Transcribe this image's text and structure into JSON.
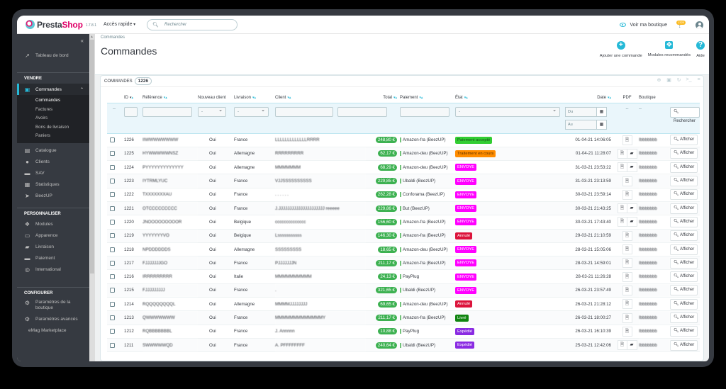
{
  "header": {
    "logo_part1": "Presta",
    "logo_part2": "Shop",
    "version": "1.7.8.1",
    "quick_access": "Accès rapide",
    "search_placeholder": "Rechercher",
    "view_shop": "Voir ma boutique",
    "notif_count": "1325"
  },
  "sidebar": {
    "collapse": "«",
    "dashboard": "Tableau de bord",
    "sections": {
      "sell": "VENDRE",
      "customize": "PERSONNALISER",
      "configure": "CONFIGURER"
    },
    "orders": "Commandes",
    "orders_sub": [
      "Commandes",
      "Factures",
      "Avoirs",
      "Bons de livraison",
      "Paniers"
    ],
    "sell_items": [
      "Catalogue",
      "Clients",
      "SAV",
      "Statistiques",
      "BeezUP"
    ],
    "customize_items": [
      "Modules",
      "Apparence",
      "Livraison",
      "Paiement",
      "International"
    ],
    "configure_items": [
      "Paramètres de la boutique",
      "Paramètres avancés",
      "eMag Marketplace"
    ]
  },
  "page": {
    "breadcrumb": "Commandes",
    "title": "Commandes",
    "toolbar": {
      "add_order": "Ajouter une commande",
      "recommended_modules": "Modules recommandés",
      "help": "Aide"
    }
  },
  "panel": {
    "title": "COMMANDES",
    "count": "1226"
  },
  "table": {
    "columns": {
      "id": "ID",
      "reference": "Référence",
      "new_client": "Nouveau client",
      "delivery": "Livraison",
      "client": "Client",
      "total": "Total",
      "payment": "Paiement",
      "state": "État",
      "date": "Date",
      "pdf": "PDF",
      "shop": "Boutique"
    },
    "filters": {
      "select_default": "-",
      "date_from": "Du",
      "date_to": "Au",
      "dash": "--",
      "search_button": "Rechercher"
    },
    "action_label": "Afficher",
    "rows": [
      {
        "id": "1226",
        "ref": "IIWWWWWWWW",
        "new": "Oui",
        "country": "France",
        "client": "LLLLLLLLLLLLLRRRR",
        "total": "248,80 €",
        "payment": "Amazon-fra (BeezUP)",
        "state": "Paiement accepté",
        "state_color": "#32cd32",
        "state_text": "#1a4f1a",
        "date": "01-04-21 14:06:05",
        "delivery_slip": false,
        "shop": "Ibbbbbbb"
      },
      {
        "id": "1225",
        "ref": "HYWWWWWNSZ",
        "new": "Oui",
        "country": "Allemagne",
        "client": "RRRRRRRRR",
        "total": "62,17 €",
        "payment": "Amazon-deu (BeezUP)",
        "state": "Traitement en cours",
        "state_color": "#ff8c00",
        "state_text": "#5a2f00",
        "date": "01-04-21 11:28:07",
        "delivery_slip": true,
        "shop": "Ibbbbbbb"
      },
      {
        "id": "1224",
        "ref": "PYYYYYYYYYYYYY",
        "new": "Oui",
        "country": "Allemagne",
        "client": "MMMMMMM",
        "total": "68,29 €",
        "payment": "Amazon-deu (BeezUP)",
        "state": "ENVOYE",
        "state_color": "#ff00ff",
        "state_text": "#ffffff",
        "date": "31-03-21 23:53:22",
        "delivery_slip": true,
        "shop": "Ibbbbbbb"
      },
      {
        "id": "1223",
        "ref": "IYTRMLYUC",
        "new": "Oui",
        "country": "France",
        "client": "VJJSSSSSSSSSS",
        "total": "229,85 €",
        "payment": "Ubaldi (BeezUP)",
        "state": "ENVOYE",
        "state_color": "#ff00ff",
        "state_text": "#ffffff",
        "date": "31-03-21 23:13:59",
        "delivery_slip": false,
        "shop": "Ibbbbbbb"
      },
      {
        "id": "1222",
        "ref": "TXXXXXXXAU",
        "new": "Oui",
        "country": "France",
        "client": ". . . . . .",
        "total": "262,28 €",
        "payment": "Conforama (BeezUP)",
        "state": "ENVOYE",
        "state_color": "#ff00ff",
        "state_text": "#ffffff",
        "date": "30-03-21 23:59:14",
        "delivery_slip": false,
        "shop": "Ibbbbbbb"
      },
      {
        "id": "1221",
        "ref": "OTCCCCCCCCC",
        "new": "Oui",
        "country": "France",
        "client": "J.JJJJJJJJJJJJJJJJJJJJJ reeeee",
        "total": "229,86 €",
        "payment": "But (BeezUP)",
        "state": "ENVOYE",
        "state_color": "#ff00ff",
        "state_text": "#ffffff",
        "date": "30-03-21 21:43:25",
        "delivery_slip": true,
        "shop": "Ibbbbbbb"
      },
      {
        "id": "1220",
        "ref": "JNOOOOOOOOOR",
        "new": "Oui",
        "country": "Belgique",
        "client": "cccccccccccccc",
        "total": "156,60 €",
        "payment": "Amazon-fra (BeezUP)",
        "state": "ENVOYE",
        "state_color": "#ff00ff",
        "state_text": "#ffffff",
        "date": "30-03-21 17:43:40",
        "delivery_slip": true,
        "shop": "Ibbbbbbb"
      },
      {
        "id": "1219",
        "ref": "YYYYYYYVO",
        "new": "Oui",
        "country": "Belgique",
        "client": "Lsssssssssss",
        "total": "146,30 €",
        "payment": "Amazon-fra (BeezUP)",
        "state": "Annulé",
        "state_color": "#dc143c",
        "state_text": "#ffffff",
        "date": "29-03-21 21:10:59",
        "delivery_slip": false,
        "shop": "Ibbbbbbb"
      },
      {
        "id": "1218",
        "ref": "NPDDDDDDS",
        "new": "Oui",
        "country": "Allemagne",
        "client": "SSSSSSSSS",
        "total": "18,65 €",
        "payment": "Amazon-deu (BeezUP)",
        "state": "ENVOYE",
        "state_color": "#ff00ff",
        "state_text": "#ffffff",
        "date": "28-03-21 15:05:06",
        "delivery_slip": false,
        "shop": "Ibbbbbbb"
      },
      {
        "id": "1217",
        "ref": "FJJJJJJJGO",
        "new": "Oui",
        "country": "France",
        "client": "PJJJJJJJN",
        "total": "211,17 €",
        "payment": "Amazon-fra (BeezUP)",
        "state": "ENVOYE",
        "state_color": "#ff00ff",
        "state_text": "#ffffff",
        "date": "28-03-21 14:59:01",
        "delivery_slip": false,
        "shop": "Ibbbbbbb"
      },
      {
        "id": "1216",
        "ref": "IRRRRRRRRR",
        "new": "Oui",
        "country": "Italie",
        "client": "MMMMMMMMMM",
        "total": "24,13 €",
        "payment": "PayPlug",
        "state": "ENVOYE",
        "state_color": "#ff00ff",
        "state_text": "#ffffff",
        "date": "28-03-21 11:26:28",
        "delivery_slip": false,
        "shop": "Ibbbbbbb"
      },
      {
        "id": "1215",
        "ref": "FJJJJJJJJJ",
        "new": "Oui",
        "country": "France",
        "client": ".",
        "total": "321,65 €",
        "payment": "Ubaldi (BeezUP)",
        "state": "ENVOYE",
        "state_color": "#ff00ff",
        "state_text": "#ffffff",
        "date": "26-03-21 23:57:49",
        "delivery_slip": false,
        "shop": "Ibbbbbbb"
      },
      {
        "id": "1214",
        "ref": "RQQQQQQQQL",
        "new": "Oui",
        "country": "Allemagne",
        "client": "MMMMJJJJJJJJ",
        "total": "69,65 €",
        "payment": "Amazon-deu (BeezUP)",
        "state": "Annulé",
        "state_color": "#dc143c",
        "state_text": "#ffffff",
        "date": "26-03-21 21:28:12",
        "delivery_slip": false,
        "shop": "Ibbbbbbb"
      },
      {
        "id": "1213",
        "ref": "QWWWWWWW",
        "new": "Oui",
        "country": "France",
        "client": "MMMMMMMMMMMMMY",
        "total": "211,17 €",
        "payment": "Amazon-fra (BeezUP)",
        "state": "Livré",
        "state_color": "#108510",
        "state_text": "#ffffff",
        "date": "26-03-21 18:00:27",
        "delivery_slip": false,
        "shop": "Ibbbbbbb"
      },
      {
        "id": "1212",
        "ref": "RQBBBBBBBL",
        "new": "Oui",
        "country": "France",
        "client": "J. Annnnn",
        "total": "10,88 €",
        "payment": "PayPlug",
        "state": "Expédié",
        "state_color": "#8a2be2",
        "state_text": "#ffffff",
        "date": "26-03-21 16:10:39",
        "delivery_slip": false,
        "shop": "Ibbbbbbb"
      },
      {
        "id": "1211",
        "ref": "SWWWWWQD",
        "new": "Oui",
        "country": "France",
        "client": "A. PFFFFFFFF",
        "total": "240,64 €",
        "payment": "Ubaldi (BeezUP)",
        "state": "Expédié",
        "state_color": "#8a2be2",
        "state_text": "#ffffff",
        "date": "25-03-21 12:42:06",
        "delivery_slip": true,
        "shop": "Ibbbbbbb"
      }
    ]
  },
  "colors": {
    "accent": "#25b9d7",
    "brand_pink": "#df0067",
    "sidebar_bg": "#363a41",
    "total_badge": "#3db151"
  }
}
